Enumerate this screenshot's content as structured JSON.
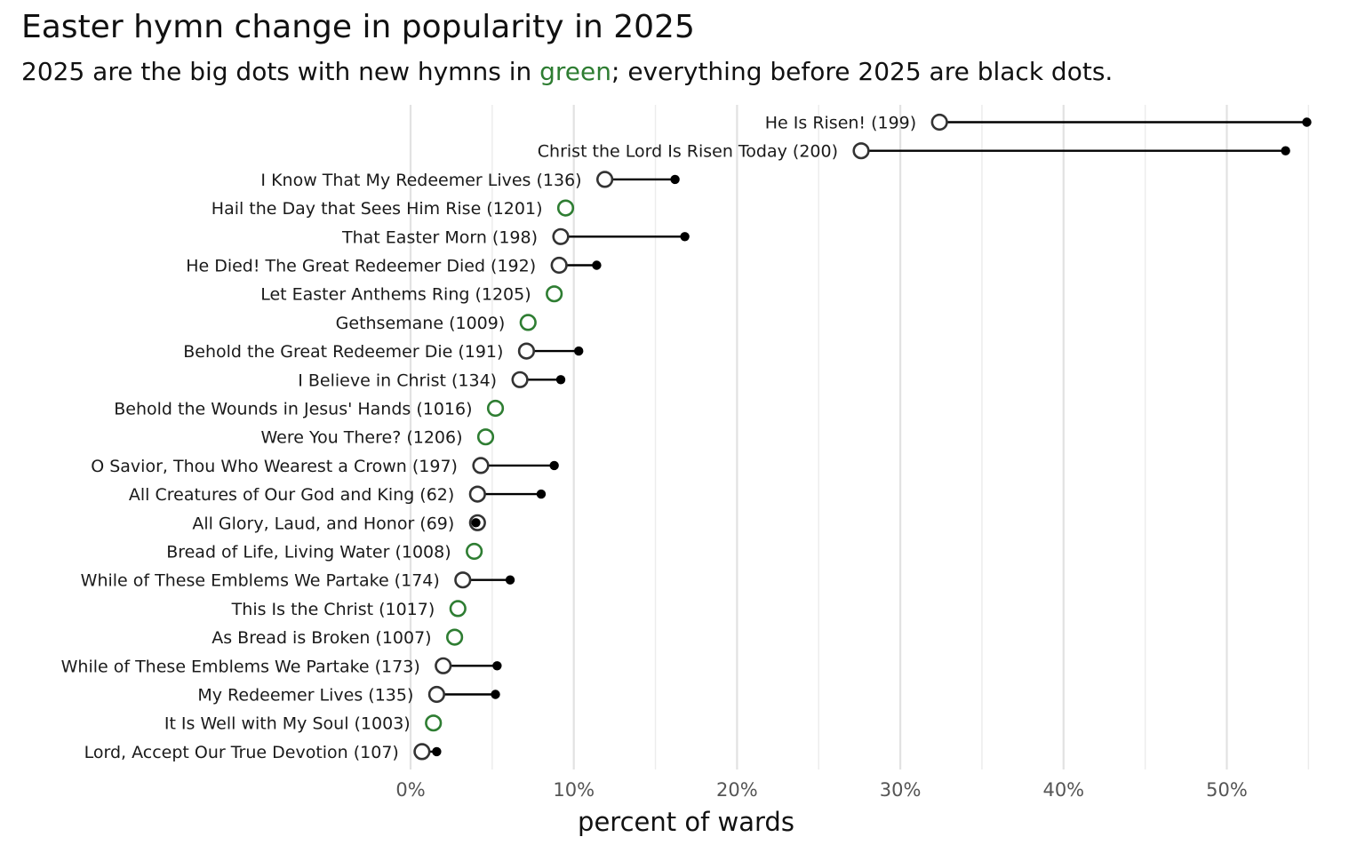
{
  "title": "Easter hymn change in popularity in 2025",
  "subtitle": {
    "before": "2025 are the big dots with new hymns in ",
    "highlight": "green",
    "after": "; everything before 2025 are black dots."
  },
  "colors": {
    "new_hymn": "#2e7d32",
    "existing_hymn": "#333333",
    "before_dot": "#000000"
  },
  "chart_data": {
    "type": "dumbbell",
    "xlabel": "percent of wards",
    "xlim": [
      0,
      55
    ],
    "x_ticks": [
      0,
      10,
      20,
      30,
      40,
      50
    ],
    "x_tick_labels": [
      "0%",
      "10%",
      "20%",
      "30%",
      "40%",
      "50%"
    ],
    "grid": true,
    "series": [
      {
        "name": "2025",
        "marker": "big open circle"
      },
      {
        "name": "before 2025",
        "marker": "small black dot"
      }
    ],
    "hymns": [
      {
        "label": "He Is Risen! (199)",
        "pct_2025": 32.4,
        "pct_before": 54.9,
        "is_new": false
      },
      {
        "label": "Christ the Lord Is Risen Today (200)",
        "pct_2025": 27.6,
        "pct_before": 53.6,
        "is_new": false
      },
      {
        "label": "I Know That My Redeemer Lives (136)",
        "pct_2025": 11.9,
        "pct_before": 16.2,
        "is_new": false
      },
      {
        "label": "Hail the Day that Sees Him Rise (1201)",
        "pct_2025": 9.5,
        "pct_before": null,
        "is_new": true
      },
      {
        "label": "That Easter Morn (198)",
        "pct_2025": 9.2,
        "pct_before": 16.8,
        "is_new": false
      },
      {
        "label": "He Died! The Great Redeemer Died (192)",
        "pct_2025": 9.1,
        "pct_before": 11.4,
        "is_new": false
      },
      {
        "label": "Let Easter Anthems Ring (1205)",
        "pct_2025": 8.8,
        "pct_before": null,
        "is_new": true
      },
      {
        "label": "Gethsemane (1009)",
        "pct_2025": 7.2,
        "pct_before": null,
        "is_new": true
      },
      {
        "label": "Behold the Great Redeemer Die (191)",
        "pct_2025": 7.1,
        "pct_before": 10.3,
        "is_new": false
      },
      {
        "label": "I Believe in Christ (134)",
        "pct_2025": 6.7,
        "pct_before": 9.2,
        "is_new": false
      },
      {
        "label": "Behold the Wounds in Jesus' Hands (1016)",
        "pct_2025": 5.2,
        "pct_before": null,
        "is_new": true
      },
      {
        "label": "Were You There? (1206)",
        "pct_2025": 4.6,
        "pct_before": null,
        "is_new": true
      },
      {
        "label": "O Savior, Thou Who Wearest a Crown (197)",
        "pct_2025": 4.3,
        "pct_before": 8.8,
        "is_new": false
      },
      {
        "label": "All Creatures of Our God and King (62)",
        "pct_2025": 4.1,
        "pct_before": 8.0,
        "is_new": false
      },
      {
        "label": "All Glory, Laud, and Honor (69)",
        "pct_2025": 4.1,
        "pct_before": 4.0,
        "is_new": false
      },
      {
        "label": "Bread of Life, Living Water (1008)",
        "pct_2025": 3.9,
        "pct_before": null,
        "is_new": true
      },
      {
        "label": "While of These Emblems We Partake (174)",
        "pct_2025": 3.2,
        "pct_before": 6.1,
        "is_new": false
      },
      {
        "label": "This Is the Christ (1017)",
        "pct_2025": 2.9,
        "pct_before": null,
        "is_new": true
      },
      {
        "label": "As Bread is Broken (1007)",
        "pct_2025": 2.7,
        "pct_before": null,
        "is_new": true
      },
      {
        "label": "While of These Emblems We Partake (173)",
        "pct_2025": 2.0,
        "pct_before": 5.3,
        "is_new": false
      },
      {
        "label": "My Redeemer Lives (135)",
        "pct_2025": 1.6,
        "pct_before": 5.2,
        "is_new": false
      },
      {
        "label": "It Is Well with My Soul (1003)",
        "pct_2025": 1.4,
        "pct_before": null,
        "is_new": true
      },
      {
        "label": "Lord, Accept Our True Devotion (107)",
        "pct_2025": 0.7,
        "pct_before": 1.6,
        "is_new": false
      }
    ]
  }
}
